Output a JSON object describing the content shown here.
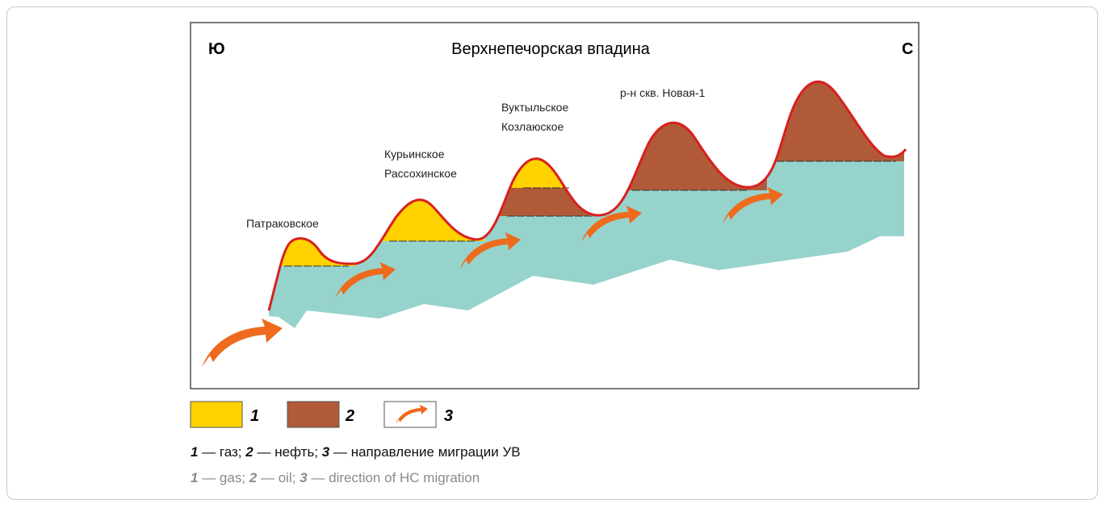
{
  "diagram": {
    "left_label": "Ю",
    "title": "Верхнепечорская впадина",
    "right_label": "С",
    "fields": [
      {
        "lines": [
          "Патраковское"
        ]
      },
      {
        "lines": [
          "Курьинское",
          "Рассохинское"
        ]
      },
      {
        "lines": [
          "Вуктыльское",
          "Козлаюское"
        ]
      },
      {
        "lines": [
          "р-н скв. Новая-1"
        ]
      }
    ]
  },
  "legend": [
    {
      "number": "1"
    },
    {
      "number": "2"
    },
    {
      "number": "3"
    }
  ],
  "caption_ru": [
    {
      "number": "1",
      "text": "— газ;"
    },
    {
      "number": "2",
      "text": "— нефть;"
    },
    {
      "number": "3",
      "text": "— направление миграции УВ"
    }
  ],
  "caption_en": [
    {
      "number": "1",
      "text": "— gas;"
    },
    {
      "number": "2",
      "text": "— oil;"
    },
    {
      "number": "3",
      "text": "— direction of HC migration"
    }
  ]
}
